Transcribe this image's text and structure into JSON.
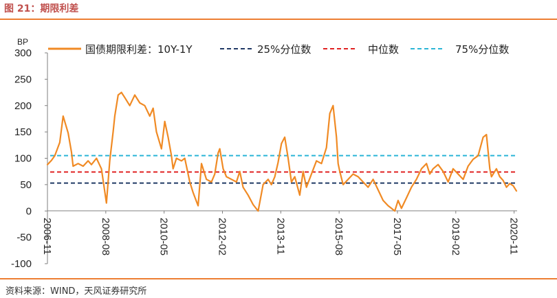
{
  "figure": {
    "title": "图 21：期限利差",
    "source": "资料来源：WIND，天风证券研究所"
  },
  "colors": {
    "accent": "#ed7d31",
    "title": "#c0504d",
    "series": "#f08a24",
    "p25": "#1f3864",
    "median": "#e02020",
    "p75": "#2ab5d6"
  },
  "chart_data": {
    "type": "line",
    "ylabel": "BP",
    "ylim": [
      -100,
      300
    ],
    "yticks": [
      -100,
      -50,
      0,
      50,
      100,
      150,
      200,
      250,
      300
    ],
    "xlim": [
      2006.83,
      2020.92
    ],
    "xticks": [
      {
        "label": "2006-11",
        "x": 2006.83
      },
      {
        "label": "2008-08",
        "x": 2008.58
      },
      {
        "label": "2010-05",
        "x": 2010.33
      },
      {
        "label": "2012-02",
        "x": 2012.08
      },
      {
        "label": "2013-11",
        "x": 2013.83
      },
      {
        "label": "2015-08",
        "x": 2015.58
      },
      {
        "label": "2017-05",
        "x": 2017.33
      },
      {
        "label": "2019-02",
        "x": 2019.08
      },
      {
        "label": "2020-11",
        "x": 2020.83
      }
    ],
    "legend": [
      "国债期限利差：10Y-1Y",
      "25%分位数",
      "中位数",
      "75%分位数"
    ],
    "reference_lines": [
      {
        "name": "25%分位数",
        "value": 53
      },
      {
        "name": "中位数",
        "value": 74
      },
      {
        "name": "75%分位数",
        "value": 105
      }
    ],
    "series": [
      {
        "name": "国债期限利差：10Y-1Y",
        "x": [
          2006.83,
          2006.95,
          2007.05,
          2007.2,
          2007.3,
          2007.45,
          2007.55,
          2007.6,
          2007.75,
          2007.9,
          2008.05,
          2008.15,
          2008.3,
          2008.45,
          2008.6,
          2008.7,
          2008.8,
          2008.85,
          2008.95,
          2009.05,
          2009.15,
          2009.3,
          2009.45,
          2009.6,
          2009.75,
          2009.9,
          2010.0,
          2010.1,
          2010.25,
          2010.35,
          2010.45,
          2010.55,
          2010.6,
          2010.7,
          2010.85,
          2010.95,
          2011.1,
          2011.2,
          2011.3,
          2011.35,
          2011.45,
          2011.6,
          2011.75,
          2011.85,
          2011.95,
          2012.0,
          2012.1,
          2012.2,
          2012.35,
          2012.5,
          2012.6,
          2012.7,
          2012.85,
          2013.0,
          2013.15,
          2013.3,
          2013.45,
          2013.55,
          2013.65,
          2013.75,
          2013.85,
          2013.95,
          2014.05,
          2014.15,
          2014.25,
          2014.4,
          2014.5,
          2014.6,
          2014.75,
          2014.9,
          2015.05,
          2015.2,
          2015.3,
          2015.4,
          2015.5,
          2015.55,
          2015.6,
          2015.7,
          2015.85,
          2016.0,
          2016.15,
          2016.3,
          2016.45,
          2016.6,
          2016.75,
          2016.9,
          2017.05,
          2017.15,
          2017.25,
          2017.35,
          2017.45,
          2017.6,
          2017.75,
          2017.9,
          2018.05,
          2018.2,
          2018.3,
          2018.4,
          2018.55,
          2018.7,
          2018.85,
          2019.0,
          2019.15,
          2019.3,
          2019.45,
          2019.6,
          2019.75,
          2019.9,
          2020.0,
          2020.1,
          2020.15,
          2020.2,
          2020.3,
          2020.4,
          2020.5,
          2020.6,
          2020.7,
          2020.8,
          2020.9
        ],
        "values": [
          88,
          96,
          105,
          130,
          180,
          148,
          112,
          85,
          90,
          85,
          95,
          88,
          100,
          80,
          15,
          95,
          150,
          180,
          220,
          225,
          215,
          200,
          220,
          205,
          200,
          180,
          195,
          150,
          118,
          170,
          140,
          105,
          80,
          100,
          95,
          100,
          55,
          35,
          18,
          10,
          90,
          60,
          55,
          70,
          110,
          118,
          80,
          65,
          60,
          55,
          75,
          45,
          30,
          12,
          0,
          50,
          60,
          50,
          65,
          92,
          128,
          140,
          100,
          55,
          65,
          30,
          75,
          45,
          70,
          95,
          90,
          120,
          185,
          200,
          140,
          90,
          75,
          50,
          60,
          70,
          65,
          55,
          45,
          60,
          40,
          20,
          10,
          5,
          0,
          20,
          5,
          25,
          45,
          60,
          80,
          90,
          70,
          80,
          88,
          75,
          55,
          80,
          70,
          60,
          85,
          98,
          105,
          140,
          145,
          80,
          65,
          70,
          80,
          65,
          58,
          45,
          52,
          48,
          38
        ]
      }
    ]
  }
}
